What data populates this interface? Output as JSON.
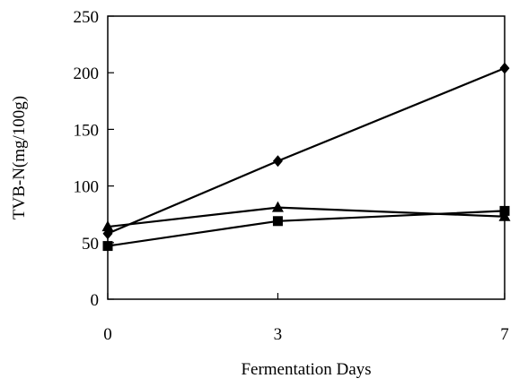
{
  "chart_data": {
    "type": "line",
    "title": "",
    "xlabel": "Fermentation Days",
    "ylabel": "TVB-N(mg/100g)",
    "x": [
      0,
      3,
      7
    ],
    "x_tick_labels": [
      "0",
      "3",
      "7"
    ],
    "xlim": [
      0,
      7
    ],
    "ylim": [
      0,
      250
    ],
    "y_ticks": [
      0,
      50,
      100,
      150,
      200,
      250
    ],
    "y_tick_labels": [
      "0",
      "50",
      "100",
      "150",
      "200",
      "250"
    ],
    "grid": false,
    "legend": "none",
    "series": [
      {
        "marker": "diamond",
        "color": "#000000",
        "values": [
          58,
          122,
          204
        ]
      },
      {
        "marker": "triangle",
        "color": "#000000",
        "values": [
          64,
          81,
          73
        ]
      },
      {
        "marker": "square",
        "color": "#000000",
        "values": [
          47,
          69,
          78
        ]
      }
    ]
  }
}
